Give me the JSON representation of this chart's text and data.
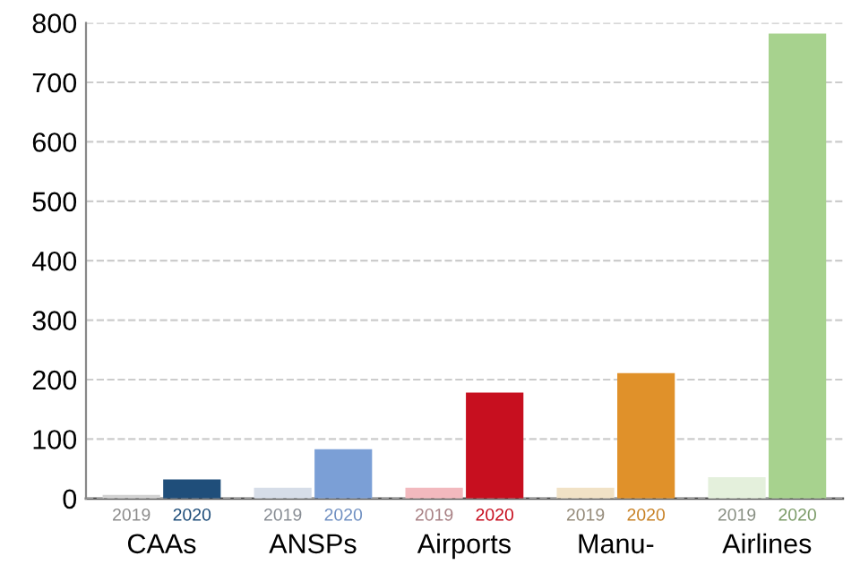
{
  "chart_data": {
    "type": "bar",
    "categories": [
      "CAAs",
      "ANSPs",
      "Airports",
      "Manu-",
      "Airlines"
    ],
    "series": [
      {
        "name": "2019",
        "colors": [
          "#d2d2d2",
          "#d6dde8",
          "#f2b9be",
          "#f1e2c6",
          "#e4f0dc"
        ],
        "values": [
          6,
          18,
          18,
          18,
          36
        ]
      },
      {
        "name": "2020",
        "colors": [
          "#1f4e7a",
          "#7b9fd6",
          "#c70f1f",
          "#e0912a",
          "#a7d28e"
        ],
        "values": [
          32,
          83,
          178,
          211,
          782
        ]
      }
    ],
    "ylim": [
      0,
      800
    ],
    "yticks": [
      0,
      100,
      200,
      300,
      400,
      500,
      600,
      700,
      800
    ],
    "grid": "y",
    "line_style": "dashed",
    "legend": false
  }
}
